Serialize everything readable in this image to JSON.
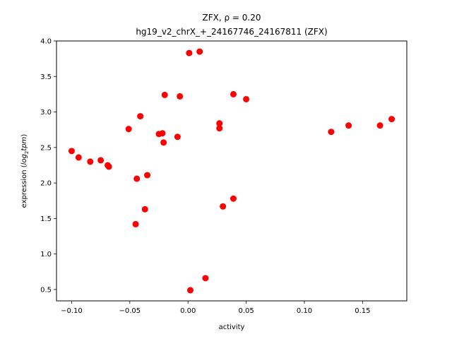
{
  "chart_data": {
    "type": "scatter",
    "title_line1": "ZFX, ρ = 0.20",
    "title_line2": "hg19_v2_chrX_+_24167746_24167811 (ZFX)",
    "xlabel": "activity",
    "ylabel_prefix": "expression (",
    "ylabel_math": "log",
    "ylabel_sub": "2",
    "ylabel_math2": "tpm",
    "ylabel_suffix": ")",
    "xlim": [
      -0.113,
      0.188
    ],
    "ylim": [
      0.34,
      4.0
    ],
    "x_ticks": [
      -0.1,
      -0.05,
      0.0,
      0.05,
      0.1,
      0.15
    ],
    "x_tick_labels": [
      "−0.10",
      "−0.05",
      "0.00",
      "0.05",
      "0.10",
      "0.15"
    ],
    "y_ticks": [
      0.5,
      1.0,
      1.5,
      2.0,
      2.5,
      3.0,
      3.5,
      4.0
    ],
    "y_tick_labels": [
      "0.5",
      "1.0",
      "1.5",
      "2.0",
      "2.5",
      "3.0",
      "3.5",
      "4.0"
    ],
    "grid": false,
    "marker_color": "#ff0000",
    "points": [
      {
        "x": -0.1,
        "y": 2.45
      },
      {
        "x": -0.094,
        "y": 2.36
      },
      {
        "x": -0.084,
        "y": 2.3
      },
      {
        "x": -0.075,
        "y": 2.32
      },
      {
        "x": -0.069,
        "y": 2.25
      },
      {
        "x": -0.068,
        "y": 2.23
      },
      {
        "x": -0.051,
        "y": 2.76
      },
      {
        "x": -0.044,
        "y": 2.06
      },
      {
        "x": -0.045,
        "y": 1.42
      },
      {
        "x": -0.041,
        "y": 2.94
      },
      {
        "x": -0.037,
        "y": 1.63
      },
      {
        "x": -0.035,
        "y": 2.11
      },
      {
        "x": -0.025,
        "y": 2.69
      },
      {
        "x": -0.022,
        "y": 2.7
      },
      {
        "x": -0.021,
        "y": 2.57
      },
      {
        "x": -0.02,
        "y": 3.24
      },
      {
        "x": -0.009,
        "y": 2.65
      },
      {
        "x": -0.007,
        "y": 3.22
      },
      {
        "x": 0.001,
        "y": 3.83
      },
      {
        "x": 0.01,
        "y": 3.85
      },
      {
        "x": 0.002,
        "y": 0.49
      },
      {
        "x": 0.015,
        "y": 0.66
      },
      {
        "x": 0.027,
        "y": 2.84
      },
      {
        "x": 0.027,
        "y": 2.77
      },
      {
        "x": 0.03,
        "y": 1.67
      },
      {
        "x": 0.039,
        "y": 1.78
      },
      {
        "x": 0.039,
        "y": 3.25
      },
      {
        "x": 0.05,
        "y": 3.18
      },
      {
        "x": 0.123,
        "y": 2.72
      },
      {
        "x": 0.138,
        "y": 2.81
      },
      {
        "x": 0.165,
        "y": 2.81
      },
      {
        "x": 0.175,
        "y": 2.9
      }
    ]
  }
}
